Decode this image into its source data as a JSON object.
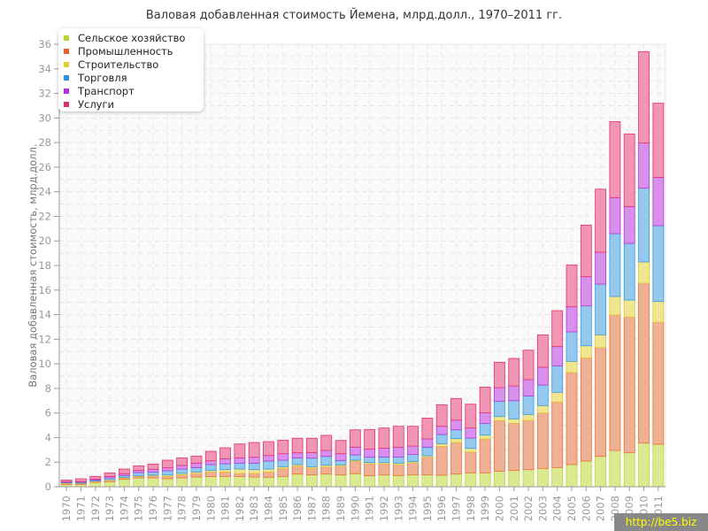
{
  "chart_data": {
    "type": "bar",
    "stacked": true,
    "title": "Валовая добавленная стоимость Йемена, млрд.долл., 1970–2011 гг.",
    "xlabel": "",
    "ylabel": "Валовая добавленная стоимость, млрд.долл.",
    "ylim": [
      0,
      36
    ],
    "yticks": [
      0,
      2,
      4,
      6,
      8,
      10,
      12,
      14,
      16,
      18,
      20,
      22,
      24,
      26,
      28,
      30,
      32,
      34,
      36
    ],
    "grid": true,
    "legend_position": "top-left",
    "categories": [
      "1970",
      "1971",
      "1972",
      "1973",
      "1974",
      "1975",
      "1976",
      "1977",
      "1978",
      "1979",
      "1980",
      "1981",
      "1982",
      "1983",
      "1984",
      "1985",
      "1986",
      "1987",
      "1988",
      "1989",
      "1990",
      "1991",
      "1992",
      "1993",
      "1994",
      "1995",
      "1996",
      "1997",
      "1998",
      "1999",
      "2000",
      "2001",
      "2002",
      "2003",
      "2004",
      "2005",
      "2006",
      "2007",
      "2008",
      "2009",
      "2010",
      "2011"
    ],
    "series": [
      {
        "name": "Сельское хозяйство",
        "color": "#b8d430",
        "fill": "#dbe991",
        "stroke": "#c2d83a",
        "values": [
          0.19,
          0.19,
          0.36,
          0.41,
          0.6,
          0.72,
          0.72,
          0.65,
          0.72,
          0.79,
          0.82,
          0.84,
          0.82,
          0.79,
          0.77,
          0.84,
          1.03,
          0.96,
          1.03,
          0.96,
          1.06,
          0.89,
          0.96,
          0.91,
          0.96,
          0.96,
          0.94,
          1.03,
          1.13,
          1.13,
          1.27,
          1.32,
          1.39,
          1.49,
          1.56,
          1.8,
          2.09,
          2.47,
          2.95,
          2.76,
          3.55,
          3.46
        ]
      },
      {
        "name": "Промышленность",
        "color": "#e8602c",
        "fill": "#efb093",
        "stroke": "#e8743b",
        "values": [
          0.1,
          0.07,
          0.07,
          0.12,
          0.12,
          0.12,
          0.17,
          0.19,
          0.24,
          0.29,
          0.38,
          0.36,
          0.26,
          0.29,
          0.43,
          0.65,
          0.65,
          0.55,
          0.58,
          0.72,
          1.03,
          0.98,
          0.91,
          0.89,
          0.98,
          1.44,
          2.35,
          2.57,
          1.68,
          2.76,
          4.11,
          3.84,
          4.01,
          4.51,
          5.33,
          7.49,
          8.4,
          8.86,
          11.02,
          11.04,
          13.01,
          9.93
        ]
      },
      {
        "name": "Строительство",
        "color": "#e0d030",
        "fill": "#f0e690",
        "stroke": "#e0c830",
        "values": [
          0.02,
          0.03,
          0.03,
          0.05,
          0.05,
          0.05,
          0.05,
          0.12,
          0.12,
          0.12,
          0.12,
          0.19,
          0.36,
          0.31,
          0.24,
          0.14,
          0.12,
          0.12,
          0.14,
          0.1,
          0.07,
          0.1,
          0.1,
          0.12,
          0.1,
          0.12,
          0.21,
          0.31,
          0.31,
          0.31,
          0.33,
          0.36,
          0.48,
          0.6,
          0.79,
          0.91,
          0.98,
          1.03,
          1.51,
          1.39,
          1.73,
          1.68
        ]
      },
      {
        "name": "Торговля",
        "color": "#3090e0",
        "fill": "#94c8ee",
        "stroke": "#3a9de0",
        "values": [
          0.05,
          0.07,
          0.09,
          0.14,
          0.14,
          0.26,
          0.26,
          0.34,
          0.36,
          0.36,
          0.48,
          0.48,
          0.48,
          0.53,
          0.65,
          0.53,
          0.55,
          0.7,
          0.72,
          0.36,
          0.43,
          0.43,
          0.45,
          0.5,
          0.58,
          0.7,
          0.75,
          0.72,
          0.84,
          0.94,
          1.25,
          1.48,
          1.51,
          1.68,
          2.16,
          2.4,
          3.24,
          4.13,
          5.11,
          4.61,
          6.0,
          6.17
        ]
      },
      {
        "name": "Транспорт",
        "color": "#b030e0",
        "fill": "#d890ec",
        "stroke": "#b03ad8",
        "values": [
          0.05,
          0.07,
          0.07,
          0.12,
          0.15,
          0.17,
          0.22,
          0.24,
          0.29,
          0.36,
          0.31,
          0.41,
          0.43,
          0.48,
          0.45,
          0.53,
          0.41,
          0.45,
          0.48,
          0.55,
          0.63,
          0.65,
          0.72,
          0.8,
          0.69,
          0.67,
          0.67,
          0.79,
          0.82,
          0.88,
          1.1,
          1.2,
          1.32,
          1.44,
          1.56,
          2.04,
          2.38,
          2.59,
          2.93,
          3.0,
          3.67,
          3.93
        ]
      },
      {
        "name": "Услуги",
        "color": "#e0306a",
        "fill": "#f096b4",
        "stroke": "#e8306e",
        "values": [
          0.14,
          0.22,
          0.22,
          0.29,
          0.38,
          0.38,
          0.43,
          0.62,
          0.62,
          0.58,
          0.77,
          0.89,
          1.13,
          1.2,
          1.13,
          1.1,
          1.18,
          1.16,
          1.23,
          1.08,
          1.41,
          1.61,
          1.64,
          1.7,
          1.61,
          1.7,
          1.75,
          1.76,
          1.94,
          2.09,
          2.07,
          2.24,
          2.4,
          2.64,
          2.93,
          3.41,
          4.2,
          5.13,
          6.19,
          5.9,
          7.44,
          6.03
        ]
      }
    ]
  },
  "watermark": "http://be5.biz"
}
